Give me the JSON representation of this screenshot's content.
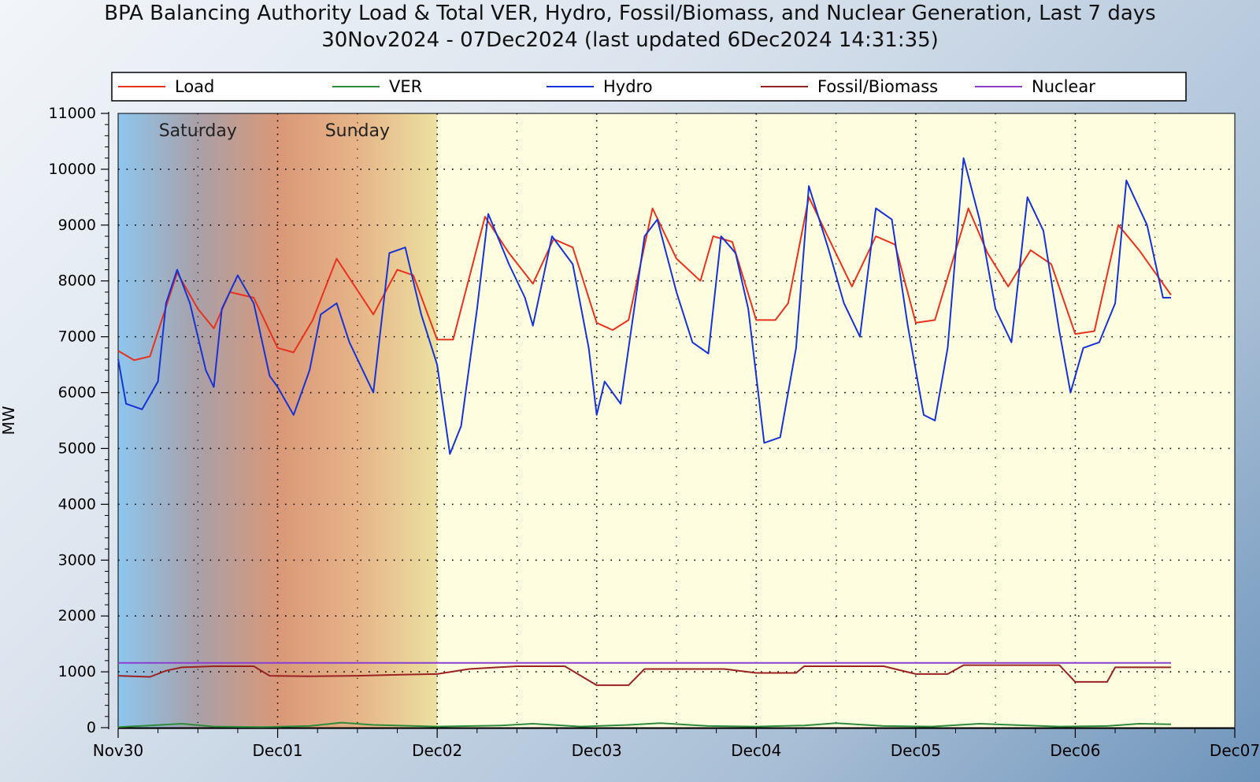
{
  "chart_data": {
    "type": "line",
    "title": "BPA Balancing Authority Load & Total VER, Hydro, Fossil/Biomass, and Nuclear Generation, Last 7 days",
    "subtitle": "30Nov2024 - 07Dec2024 (last updated 6Dec2024 14:31:35)",
    "ylabel": "MW",
    "xlabel": "",
    "ylim": [
      0,
      11000
    ],
    "xlim_days": [
      0,
      7
    ],
    "y_ticks": [
      "0",
      "1000",
      "2000",
      "3000",
      "4000",
      "5000",
      "6000",
      "7000",
      "8000",
      "9000",
      "10000",
      "11000"
    ],
    "x_ticks": [
      "Nov30",
      "Dec01",
      "Dec02",
      "Dec03",
      "Dec04",
      "Dec05",
      "Dec06",
      "Dec07"
    ],
    "weekend_labels": [
      "Saturday",
      "Sunday"
    ],
    "grid": true,
    "legend_position": "top",
    "x_day": [
      0,
      0.25,
      0.5,
      0.75,
      1,
      1.25,
      1.5,
      1.75,
      2,
      2.25,
      2.5,
      2.75,
      3,
      3.25,
      3.5,
      3.75,
      4,
      4.25,
      4.5,
      4.75,
      5,
      5.25,
      5.5,
      5.75,
      6,
      6.25,
      6.5,
      6.6
    ],
    "series": [
      {
        "name": "Load",
        "color": "#e8321e",
        "points": [
          [
            0,
            6750
          ],
          [
            0.1,
            6580
          ],
          [
            0.2,
            6650
          ],
          [
            0.37,
            8150
          ],
          [
            0.5,
            7500
          ],
          [
            0.6,
            7150
          ],
          [
            0.7,
            7800
          ],
          [
            0.85,
            7700
          ],
          [
            1,
            6800
          ],
          [
            1.1,
            6720
          ],
          [
            1.22,
            7300
          ],
          [
            1.37,
            8400
          ],
          [
            1.6,
            7400
          ],
          [
            1.75,
            8200
          ],
          [
            1.85,
            8100
          ],
          [
            2,
            6950
          ],
          [
            2.1,
            6950
          ],
          [
            2.3,
            9150
          ],
          [
            2.45,
            8500
          ],
          [
            2.6,
            7950
          ],
          [
            2.73,
            8750
          ],
          [
            2.85,
            8600
          ],
          [
            3,
            7250
          ],
          [
            3.1,
            7120
          ],
          [
            3.2,
            7300
          ],
          [
            3.35,
            9300
          ],
          [
            3.5,
            8400
          ],
          [
            3.65,
            8000
          ],
          [
            3.73,
            8800
          ],
          [
            3.85,
            8700
          ],
          [
            4,
            7300
          ],
          [
            4.12,
            7300
          ],
          [
            4.2,
            7600
          ],
          [
            4.33,
            9500
          ],
          [
            4.6,
            7900
          ],
          [
            4.75,
            8800
          ],
          [
            4.87,
            8650
          ],
          [
            5,
            7250
          ],
          [
            5.12,
            7300
          ],
          [
            5.33,
            9300
          ],
          [
            5.45,
            8500
          ],
          [
            5.58,
            7900
          ],
          [
            5.72,
            8550
          ],
          [
            5.85,
            8300
          ],
          [
            6,
            7050
          ],
          [
            6.12,
            7100
          ],
          [
            6.27,
            9000
          ],
          [
            6.4,
            8550
          ],
          [
            6.6,
            7750
          ]
        ]
      },
      {
        "name": "VER",
        "color": "#2e8b3a",
        "points": [
          [
            0,
            10
          ],
          [
            0.2,
            40
          ],
          [
            0.4,
            70
          ],
          [
            0.6,
            20
          ],
          [
            0.9,
            10
          ],
          [
            1.2,
            30
          ],
          [
            1.4,
            90
          ],
          [
            1.6,
            50
          ],
          [
            2,
            20
          ],
          [
            2.4,
            40
          ],
          [
            2.6,
            70
          ],
          [
            2.9,
            20
          ],
          [
            3.2,
            50
          ],
          [
            3.4,
            80
          ],
          [
            3.7,
            30
          ],
          [
            4,
            20
          ],
          [
            4.3,
            40
          ],
          [
            4.5,
            80
          ],
          [
            4.8,
            30
          ],
          [
            5.1,
            20
          ],
          [
            5.4,
            70
          ],
          [
            5.6,
            50
          ],
          [
            5.9,
            20
          ],
          [
            6.2,
            30
          ],
          [
            6.4,
            70
          ],
          [
            6.6,
            60
          ]
        ]
      },
      {
        "name": "Hydro",
        "color": "#1533d6",
        "points": [
          [
            0,
            6600
          ],
          [
            0.05,
            5800
          ],
          [
            0.15,
            5700
          ],
          [
            0.25,
            6200
          ],
          [
            0.3,
            7600
          ],
          [
            0.37,
            8200
          ],
          [
            0.45,
            7600
          ],
          [
            0.55,
            6400
          ],
          [
            0.6,
            6100
          ],
          [
            0.65,
            7500
          ],
          [
            0.75,
            8100
          ],
          [
            0.85,
            7600
          ],
          [
            0.95,
            6300
          ],
          [
            1,
            6100
          ],
          [
            1.1,
            5600
          ],
          [
            1.2,
            6400
          ],
          [
            1.27,
            7400
          ],
          [
            1.37,
            7600
          ],
          [
            1.45,
            6900
          ],
          [
            1.55,
            6300
          ],
          [
            1.6,
            6000
          ],
          [
            1.7,
            8500
          ],
          [
            1.8,
            8600
          ],
          [
            1.9,
            7400
          ],
          [
            2,
            6500
          ],
          [
            2.08,
            4900
          ],
          [
            2.15,
            5400
          ],
          [
            2.25,
            7500
          ],
          [
            2.32,
            9200
          ],
          [
            2.45,
            8300
          ],
          [
            2.55,
            7700
          ],
          [
            2.6,
            7200
          ],
          [
            2.72,
            8800
          ],
          [
            2.85,
            8300
          ],
          [
            2.95,
            6800
          ],
          [
            3,
            5600
          ],
          [
            3.05,
            6200
          ],
          [
            3.15,
            5800
          ],
          [
            3.3,
            8800
          ],
          [
            3.38,
            9100
          ],
          [
            3.5,
            7800
          ],
          [
            3.6,
            6900
          ],
          [
            3.7,
            6700
          ],
          [
            3.78,
            8800
          ],
          [
            3.87,
            8500
          ],
          [
            3.95,
            7500
          ],
          [
            4.05,
            5100
          ],
          [
            4.15,
            5200
          ],
          [
            4.25,
            6800
          ],
          [
            4.33,
            9700
          ],
          [
            4.45,
            8600
          ],
          [
            4.55,
            7600
          ],
          [
            4.65,
            7000
          ],
          [
            4.75,
            9300
          ],
          [
            4.85,
            9100
          ],
          [
            4.95,
            7200
          ],
          [
            5.05,
            5600
          ],
          [
            5.12,
            5500
          ],
          [
            5.2,
            6800
          ],
          [
            5.3,
            10200
          ],
          [
            5.4,
            9100
          ],
          [
            5.5,
            7500
          ],
          [
            5.6,
            6900
          ],
          [
            5.7,
            9500
          ],
          [
            5.8,
            8900
          ],
          [
            5.9,
            7100
          ],
          [
            5.97,
            6000
          ],
          [
            6.05,
            6800
          ],
          [
            6.15,
            6900
          ],
          [
            6.25,
            7600
          ],
          [
            6.32,
            9800
          ],
          [
            6.45,
            9000
          ],
          [
            6.55,
            7700
          ],
          [
            6.6,
            7700
          ]
        ]
      },
      {
        "name": "Fossil/Biomass",
        "color": "#9b2222",
        "points": [
          [
            0,
            930
          ],
          [
            0.2,
            910
          ],
          [
            0.3,
            1020
          ],
          [
            0.4,
            1080
          ],
          [
            0.6,
            1100
          ],
          [
            0.85,
            1100
          ],
          [
            0.95,
            930
          ],
          [
            1.2,
            920
          ],
          [
            1.5,
            930
          ],
          [
            1.8,
            950
          ],
          [
            2,
            960
          ],
          [
            2.2,
            1050
          ],
          [
            2.5,
            1100
          ],
          [
            2.8,
            1100
          ],
          [
            3,
            760
          ],
          [
            3.2,
            760
          ],
          [
            3.3,
            1050
          ],
          [
            3.8,
            1050
          ],
          [
            4,
            980
          ],
          [
            4.25,
            980
          ],
          [
            4.3,
            1100
          ],
          [
            4.8,
            1100
          ],
          [
            5,
            960
          ],
          [
            5.2,
            960
          ],
          [
            5.3,
            1120
          ],
          [
            5.9,
            1120
          ],
          [
            6,
            820
          ],
          [
            6.2,
            820
          ],
          [
            6.25,
            1080
          ],
          [
            6.6,
            1080
          ]
        ]
      },
      {
        "name": "Nuclear",
        "color": "#8a3fd1",
        "points": [
          [
            0,
            1160
          ],
          [
            6.6,
            1160
          ]
        ]
      }
    ]
  }
}
